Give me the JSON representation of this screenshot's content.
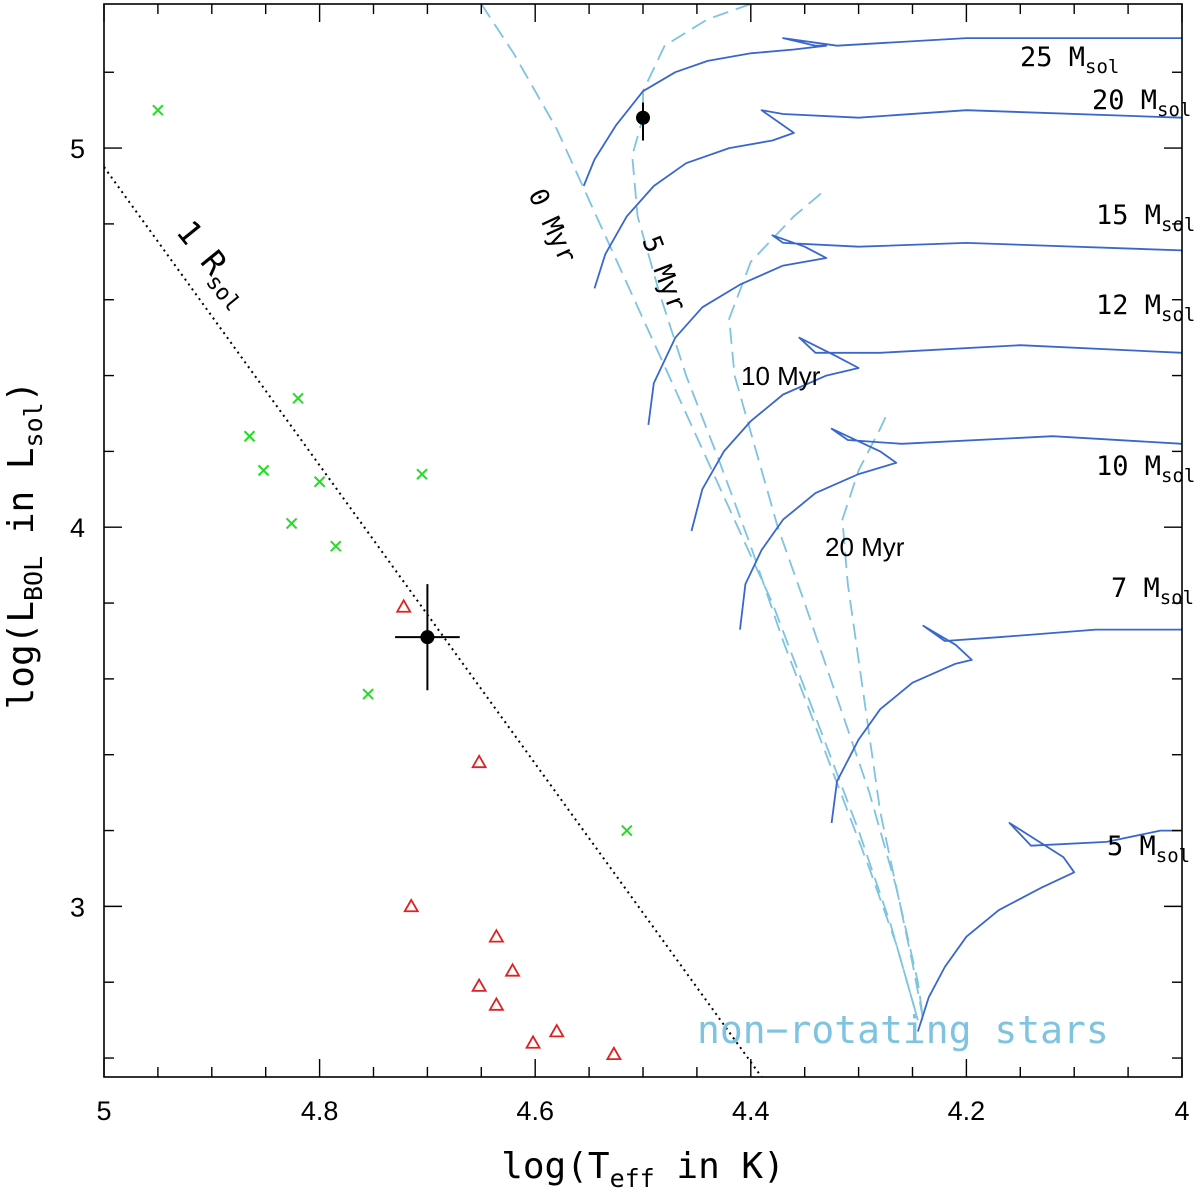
{
  "chart_data": {
    "type": "scatter",
    "title": "",
    "xlabel": {
      "main": "log(T",
      "sub": "eff",
      "post": " in K)"
    },
    "ylabel": {
      "main": "log(L",
      "sub1": "BOL",
      "mid": " in L",
      "sub2": "sol",
      "post": ")"
    },
    "xlim": [
      5.0,
      4.0
    ],
    "ylim": [
      2.55,
      5.38
    ],
    "x_ticks": [
      5.0,
      4.8,
      4.6,
      4.4,
      4.2,
      4.0
    ],
    "x_tick_labels": [
      "5",
      "4.8",
      "4.6",
      "4.4",
      "4.2",
      "4"
    ],
    "y_ticks": [
      3,
      4,
      5
    ],
    "y_tick_labels": [
      "3",
      "4",
      "5"
    ],
    "grid": false,
    "colors": {
      "tracks": "#3a67cc",
      "isochrones": "#7ec3e0",
      "crosses": "#22dd22",
      "triangles": "#dd2222",
      "radius_line": "#000000",
      "points": "#000000"
    },
    "series_crosses": {
      "name": "green crosses",
      "points": [
        [
          4.95,
          5.1
        ],
        [
          4.865,
          4.24
        ],
        [
          4.852,
          4.15
        ],
        [
          4.82,
          4.34
        ],
        [
          4.8,
          4.12
        ],
        [
          4.826,
          4.01
        ],
        [
          4.785,
          3.95
        ],
        [
          4.705,
          4.14
        ],
        [
          4.755,
          3.56
        ],
        [
          4.515,
          3.2
        ]
      ]
    },
    "series_triangles": {
      "name": "red triangles",
      "points": [
        [
          4.722,
          3.79
        ],
        [
          4.652,
          3.38
        ],
        [
          4.715,
          3.0
        ],
        [
          4.636,
          2.92
        ],
        [
          4.621,
          2.83
        ],
        [
          4.652,
          2.79
        ],
        [
          4.636,
          2.74
        ],
        [
          4.602,
          2.64
        ],
        [
          4.58,
          2.67
        ],
        [
          4.527,
          2.61
        ]
      ]
    },
    "series_points": {
      "name": "black points",
      "points": [
        {
          "x": 4.7,
          "y": 3.71,
          "xerr": 0.03,
          "yerr_up": 0.14,
          "yerr_down": 0.14
        },
        {
          "x": 4.5,
          "y": 5.08,
          "xerr": 0.0,
          "yerr_up": 0.04,
          "yerr_down": 0.06
        }
      ]
    },
    "radius_line": {
      "label_main": "1 R",
      "label_sub": "sol",
      "points": [
        [
          5.0,
          4.95
        ],
        [
          4.39,
          2.55
        ]
      ]
    },
    "tracks": [
      {
        "label_main": "25 M",
        "label_sub": "sol",
        "points": [
          [
            4.555,
            4.9
          ],
          [
            4.545,
            4.97
          ],
          [
            4.525,
            5.06
          ],
          [
            4.5,
            5.15
          ],
          [
            4.47,
            5.2
          ],
          [
            4.44,
            5.23
          ],
          [
            4.4,
            5.25
          ],
          [
            4.36,
            5.26
          ],
          [
            4.33,
            5.27
          ],
          [
            4.34,
            5.27
          ],
          [
            4.37,
            5.29
          ],
          [
            4.32,
            5.27
          ],
          [
            4.2,
            5.29
          ],
          [
            4.0,
            5.29
          ]
        ]
      },
      {
        "label_main": "20 M",
        "label_sub": "sol",
        "points": [
          [
            4.545,
            4.63
          ],
          [
            4.535,
            4.72
          ],
          [
            4.515,
            4.82
          ],
          [
            4.49,
            4.9
          ],
          [
            4.46,
            4.96
          ],
          [
            4.42,
            5.0
          ],
          [
            4.38,
            5.02
          ],
          [
            4.36,
            5.04
          ],
          [
            4.39,
            5.1
          ],
          [
            4.37,
            5.09
          ],
          [
            4.3,
            5.08
          ],
          [
            4.2,
            5.1
          ],
          [
            4.0,
            5.08
          ]
        ]
      },
      {
        "label_main": "15 M",
        "label_sub": "sol",
        "points": [
          [
            4.495,
            4.27
          ],
          [
            4.49,
            4.38
          ],
          [
            4.47,
            4.5
          ],
          [
            4.445,
            4.58
          ],
          [
            4.41,
            4.64
          ],
          [
            4.37,
            4.69
          ],
          [
            4.33,
            4.71
          ],
          [
            4.35,
            4.74
          ],
          [
            4.38,
            4.77
          ],
          [
            4.37,
            4.75
          ],
          [
            4.3,
            4.74
          ],
          [
            4.2,
            4.75
          ],
          [
            4.0,
            4.73
          ]
        ]
      },
      {
        "label_main": "12 M",
        "label_sub": "sol",
        "points": [
          [
            4.455,
            3.99
          ],
          [
            4.445,
            4.1
          ],
          [
            4.425,
            4.2
          ],
          [
            4.4,
            4.28
          ],
          [
            4.37,
            4.35
          ],
          [
            4.33,
            4.4
          ],
          [
            4.3,
            4.42
          ],
          [
            4.32,
            4.45
          ],
          [
            4.355,
            4.5
          ],
          [
            4.34,
            4.46
          ],
          [
            4.28,
            4.46
          ],
          [
            4.15,
            4.48
          ],
          [
            4.0,
            4.46
          ]
        ]
      },
      {
        "label_main": "10 M",
        "label_sub": "sol",
        "points": [
          [
            4.41,
            3.73
          ],
          [
            4.405,
            3.85
          ],
          [
            4.39,
            3.94
          ],
          [
            4.37,
            4.02
          ],
          [
            4.34,
            4.09
          ],
          [
            4.3,
            4.14
          ],
          [
            4.265,
            4.17
          ],
          [
            4.28,
            4.2
          ],
          [
            4.325,
            4.26
          ],
          [
            4.31,
            4.23
          ],
          [
            4.26,
            4.22
          ],
          [
            4.12,
            4.24
          ],
          [
            4.0,
            4.22
          ]
        ]
      },
      {
        "label_main": "7 M",
        "label_sub": "sol",
        "points": [
          [
            4.325,
            3.22
          ],
          [
            4.32,
            3.33
          ],
          [
            4.3,
            3.44
          ],
          [
            4.28,
            3.52
          ],
          [
            4.25,
            3.59
          ],
          [
            4.21,
            3.64
          ],
          [
            4.195,
            3.65
          ],
          [
            4.21,
            3.69
          ],
          [
            4.24,
            3.74
          ],
          [
            4.22,
            3.7
          ],
          [
            4.17,
            3.71
          ],
          [
            4.08,
            3.73
          ],
          [
            4.0,
            3.73
          ]
        ]
      },
      {
        "label_main": "5 M",
        "label_sub": "sol",
        "points": [
          [
            4.245,
            2.67
          ],
          [
            4.235,
            2.76
          ],
          [
            4.22,
            2.84
          ],
          [
            4.2,
            2.92
          ],
          [
            4.17,
            2.99
          ],
          [
            4.13,
            3.05
          ],
          [
            4.1,
            3.09
          ],
          [
            4.11,
            3.13
          ],
          [
            4.16,
            3.22
          ],
          [
            4.14,
            3.16
          ],
          [
            4.07,
            3.17
          ],
          [
            4.02,
            3.2
          ],
          [
            4.0,
            3.2
          ]
        ]
      }
    ],
    "isochrones": [
      {
        "label": "0 Myr",
        "points": [
          [
            4.65,
            5.38
          ],
          [
            4.62,
            5.25
          ],
          [
            4.58,
            5.05
          ],
          [
            4.54,
            4.8
          ],
          [
            4.5,
            4.55
          ],
          [
            4.46,
            4.3
          ],
          [
            4.42,
            4.05
          ],
          [
            4.38,
            3.8
          ],
          [
            4.34,
            3.5
          ],
          [
            4.3,
            3.2
          ],
          [
            4.27,
            2.95
          ],
          [
            4.245,
            2.7
          ]
        ]
      },
      {
        "label": "5 Myr",
        "points": [
          [
            4.4,
            5.38
          ],
          [
            4.44,
            5.34
          ],
          [
            4.48,
            5.27
          ],
          [
            4.5,
            5.15
          ],
          [
            4.5,
            5.08
          ],
          [
            4.51,
            4.98
          ],
          [
            4.505,
            4.82
          ],
          [
            4.485,
            4.62
          ],
          [
            4.46,
            4.4
          ],
          [
            4.43,
            4.18
          ],
          [
            4.4,
            3.95
          ],
          [
            4.37,
            3.7
          ],
          [
            4.33,
            3.4
          ],
          [
            4.29,
            3.1
          ],
          [
            4.265,
            2.9
          ],
          [
            4.245,
            2.7
          ]
        ]
      },
      {
        "label": "10 Myr",
        "points": [
          [
            4.335,
            4.88
          ],
          [
            4.36,
            4.82
          ],
          [
            4.4,
            4.7
          ],
          [
            4.42,
            4.55
          ],
          [
            4.415,
            4.4
          ],
          [
            4.395,
            4.2
          ],
          [
            4.375,
            4.0
          ],
          [
            4.35,
            3.8
          ],
          [
            4.32,
            3.55
          ],
          [
            4.29,
            3.3
          ],
          [
            4.265,
            3.05
          ],
          [
            4.245,
            2.8
          ],
          [
            4.24,
            2.7
          ]
        ]
      },
      {
        "label": "20 Myr",
        "points": [
          [
            4.275,
            4.29
          ],
          [
            4.28,
            4.26
          ],
          [
            4.3,
            4.15
          ],
          [
            4.315,
            4.02
          ],
          [
            4.31,
            3.85
          ],
          [
            4.3,
            3.65
          ],
          [
            4.29,
            3.45
          ],
          [
            4.28,
            3.25
          ],
          [
            4.265,
            3.05
          ],
          [
            4.25,
            2.85
          ],
          [
            4.24,
            2.7
          ]
        ]
      }
    ],
    "annotations": {
      "iso_0": "0 Myr",
      "iso_5": "5 Myr",
      "iso_10": "10 Myr",
      "iso_20": "20 Myr",
      "legend_text": "non−rotating stars"
    }
  }
}
